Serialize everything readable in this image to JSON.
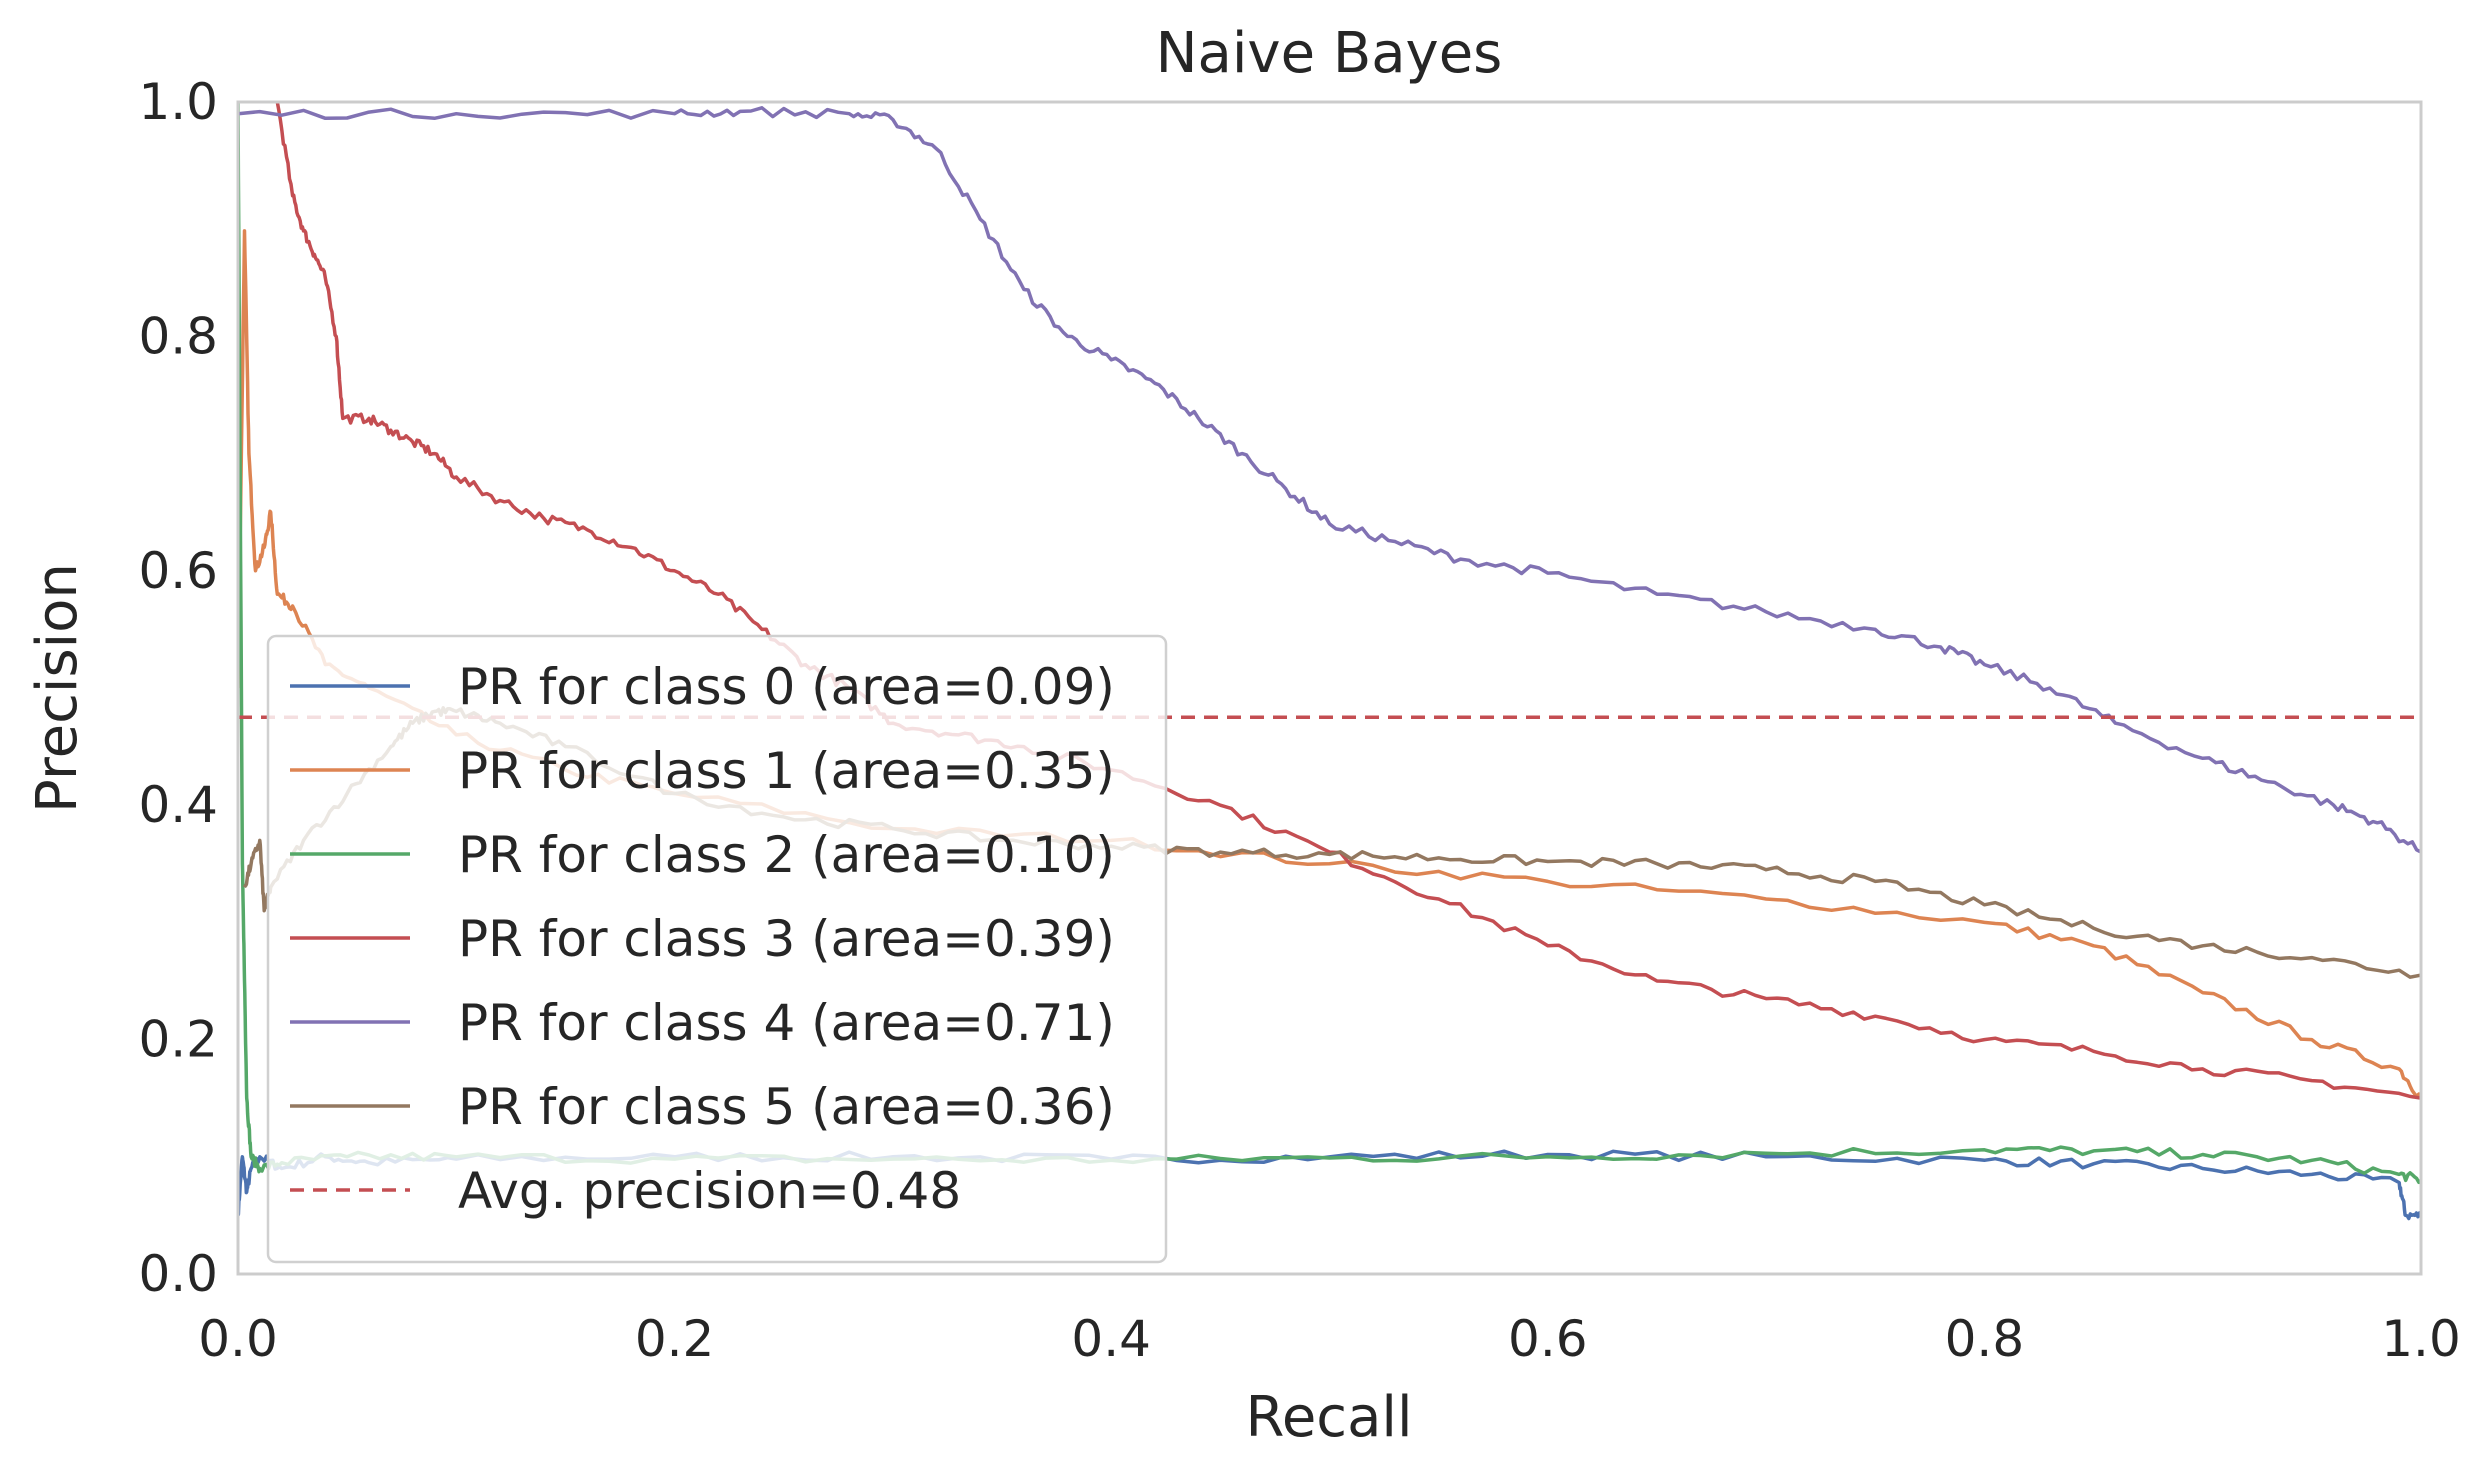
{
  "chart_data": {
    "type": "line",
    "title": "Naive Bayes",
    "xlabel": "Recall",
    "ylabel": "Precision",
    "xlim": [
      0.0,
      1.0
    ],
    "ylim": [
      0.0,
      1.0
    ],
    "xticks": [
      "0.0",
      "0.2",
      "0.4",
      "0.6",
      "0.8",
      "1.0"
    ],
    "yticks": [
      "0.0",
      "0.2",
      "0.4",
      "0.6",
      "0.8",
      "1.0"
    ],
    "grid": false,
    "legend_position": "lower-left",
    "series": [
      {
        "name": "PR for class 0 (area=0.09)",
        "color": "#4c72b0",
        "points": [
          [
            0.0,
            0.05
          ],
          [
            0.002,
            0.1
          ],
          [
            0.004,
            0.07
          ],
          [
            0.006,
            0.09
          ],
          [
            0.01,
            0.1
          ],
          [
            0.02,
            0.09
          ],
          [
            0.04,
            0.1
          ],
          [
            0.06,
            0.095
          ],
          [
            0.1,
            0.098
          ],
          [
            0.2,
            0.1
          ],
          [
            0.3,
            0.1
          ],
          [
            0.4,
            0.098
          ],
          [
            0.5,
            0.1
          ],
          [
            0.6,
            0.102
          ],
          [
            0.7,
            0.1
          ],
          [
            0.8,
            0.097
          ],
          [
            0.85,
            0.094
          ],
          [
            0.9,
            0.09
          ],
          [
            0.95,
            0.085
          ],
          [
            0.99,
            0.078
          ],
          [
            0.993,
            0.05
          ],
          [
            1.0,
            0.05
          ]
        ]
      },
      {
        "name": "PR for class 1 (area=0.35)",
        "color": "#dd8452",
        "points": [
          [
            0.0,
            0.5
          ],
          [
            0.003,
            0.89
          ],
          [
            0.005,
            0.7
          ],
          [
            0.008,
            0.6
          ],
          [
            0.012,
            0.62
          ],
          [
            0.015,
            0.65
          ],
          [
            0.018,
            0.58
          ],
          [
            0.025,
            0.57
          ],
          [
            0.04,
            0.52
          ],
          [
            0.06,
            0.5
          ],
          [
            0.1,
            0.46
          ],
          [
            0.15,
            0.43
          ],
          [
            0.2,
            0.41
          ],
          [
            0.3,
            0.38
          ],
          [
            0.4,
            0.37
          ],
          [
            0.5,
            0.35
          ],
          [
            0.6,
            0.335
          ],
          [
            0.7,
            0.32
          ],
          [
            0.8,
            0.3
          ],
          [
            0.85,
            0.28
          ],
          [
            0.9,
            0.24
          ],
          [
            0.95,
            0.2
          ],
          [
            0.99,
            0.175
          ],
          [
            1.0,
            0.15
          ]
        ]
      },
      {
        "name": "PR for class 2 (area=0.10)",
        "color": "#55a868",
        "points": [
          [
            0.0,
            1.0
          ],
          [
            0.002,
            0.35
          ],
          [
            0.003,
            0.25
          ],
          [
            0.004,
            0.15
          ],
          [
            0.006,
            0.1
          ],
          [
            0.01,
            0.09
          ],
          [
            0.02,
            0.095
          ],
          [
            0.05,
            0.1
          ],
          [
            0.1,
            0.1
          ],
          [
            0.2,
            0.098
          ],
          [
            0.3,
            0.098
          ],
          [
            0.4,
            0.097
          ],
          [
            0.5,
            0.099
          ],
          [
            0.6,
            0.1
          ],
          [
            0.7,
            0.103
          ],
          [
            0.8,
            0.106
          ],
          [
            0.85,
            0.105
          ],
          [
            0.9,
            0.102
          ],
          [
            0.95,
            0.097
          ],
          [
            0.99,
            0.085
          ],
          [
            1.0,
            0.08
          ]
        ]
      },
      {
        "name": "PR for class 3 (area=0.39)",
        "color": "#c44e52",
        "points": [
          [
            0.018,
            1.0
          ],
          [
            0.025,
            0.92
          ],
          [
            0.03,
            0.89
          ],
          [
            0.035,
            0.87
          ],
          [
            0.04,
            0.85
          ],
          [
            0.045,
            0.8
          ],
          [
            0.048,
            0.73
          ],
          [
            0.06,
            0.73
          ],
          [
            0.07,
            0.72
          ],
          [
            0.08,
            0.71
          ],
          [
            0.09,
            0.7
          ],
          [
            0.1,
            0.68
          ],
          [
            0.12,
            0.66
          ],
          [
            0.14,
            0.645
          ],
          [
            0.16,
            0.635
          ],
          [
            0.18,
            0.62
          ],
          [
            0.2,
            0.6
          ],
          [
            0.22,
            0.58
          ],
          [
            0.24,
            0.55
          ],
          [
            0.26,
            0.52
          ],
          [
            0.28,
            0.5
          ],
          [
            0.3,
            0.47
          ],
          [
            0.33,
            0.46
          ],
          [
            0.36,
            0.45
          ],
          [
            0.4,
            0.43
          ],
          [
            0.45,
            0.4
          ],
          [
            0.5,
            0.36
          ],
          [
            0.55,
            0.32
          ],
          [
            0.6,
            0.28
          ],
          [
            0.65,
            0.25
          ],
          [
            0.7,
            0.235
          ],
          [
            0.75,
            0.22
          ],
          [
            0.8,
            0.2
          ],
          [
            0.85,
            0.19
          ],
          [
            0.9,
            0.175
          ],
          [
            0.95,
            0.165
          ],
          [
            1.0,
            0.15
          ]
        ]
      },
      {
        "name": "PR for class 4 (area=0.71)",
        "color": "#8172b3",
        "points": [
          [
            0.0,
            0.99
          ],
          [
            0.1,
            0.99
          ],
          [
            0.2,
            0.99
          ],
          [
            0.23,
            0.992
          ],
          [
            0.28,
            0.99
          ],
          [
            0.3,
            0.985
          ],
          [
            0.32,
            0.96
          ],
          [
            0.34,
            0.9
          ],
          [
            0.36,
            0.84
          ],
          [
            0.38,
            0.8
          ],
          [
            0.4,
            0.78
          ],
          [
            0.42,
            0.76
          ],
          [
            0.44,
            0.73
          ],
          [
            0.46,
            0.7
          ],
          [
            0.48,
            0.67
          ],
          [
            0.5,
            0.64
          ],
          [
            0.53,
            0.625
          ],
          [
            0.56,
            0.61
          ],
          [
            0.6,
            0.598
          ],
          [
            0.65,
            0.58
          ],
          [
            0.7,
            0.565
          ],
          [
            0.75,
            0.55
          ],
          [
            0.78,
            0.535
          ],
          [
            0.8,
            0.52
          ],
          [
            0.83,
            0.5
          ],
          [
            0.86,
            0.47
          ],
          [
            0.9,
            0.44
          ],
          [
            0.93,
            0.42
          ],
          [
            0.96,
            0.4
          ],
          [
            0.98,
            0.385
          ],
          [
            1.0,
            0.36
          ]
        ]
      },
      {
        "name": "PR for class 5 (area=0.36)",
        "color": "#937860",
        "points": [
          [
            0.003,
            0.33
          ],
          [
            0.006,
            0.35
          ],
          [
            0.01,
            0.37
          ],
          [
            0.012,
            0.31
          ],
          [
            0.015,
            0.33
          ],
          [
            0.03,
            0.37
          ],
          [
            0.05,
            0.41
          ],
          [
            0.07,
            0.45
          ],
          [
            0.08,
            0.47
          ],
          [
            0.09,
            0.48
          ],
          [
            0.1,
            0.48
          ],
          [
            0.12,
            0.47
          ],
          [
            0.15,
            0.45
          ],
          [
            0.2,
            0.41
          ],
          [
            0.25,
            0.39
          ],
          [
            0.3,
            0.38
          ],
          [
            0.35,
            0.37
          ],
          [
            0.4,
            0.365
          ],
          [
            0.45,
            0.36
          ],
          [
            0.5,
            0.358
          ],
          [
            0.55,
            0.355
          ],
          [
            0.6,
            0.352
          ],
          [
            0.65,
            0.35
          ],
          [
            0.7,
            0.345
          ],
          [
            0.75,
            0.335
          ],
          [
            0.8,
            0.315
          ],
          [
            0.85,
            0.295
          ],
          [
            0.9,
            0.28
          ],
          [
            0.95,
            0.27
          ],
          [
            1.0,
            0.255
          ]
        ]
      }
    ],
    "reference_line": {
      "name": "Avg. precision=0.48",
      "y": 0.475,
      "color": "#c44e52",
      "style": "dashed"
    }
  }
}
